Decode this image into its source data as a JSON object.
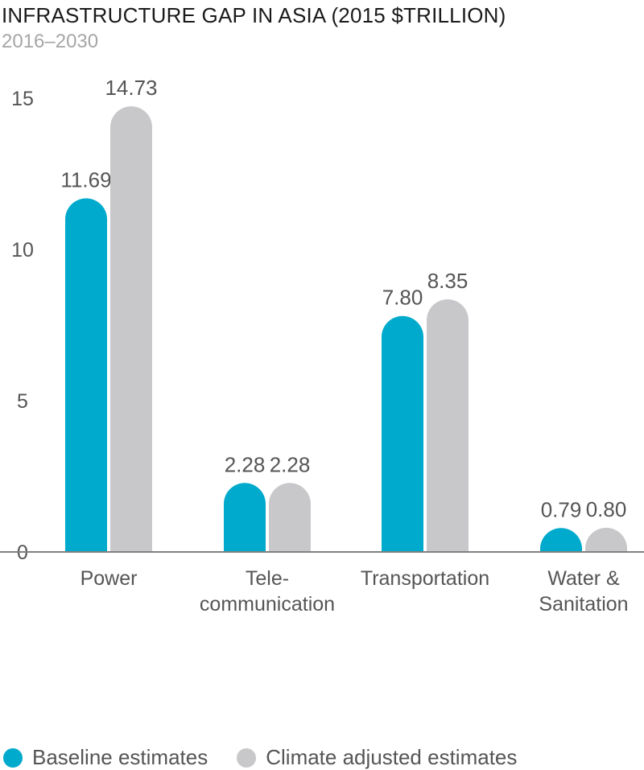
{
  "chart_data": {
    "type": "bar",
    "title": "INFRASTRUCTURE GAP IN ASIA (2015 $TRILLION)",
    "subtitle": "2016–2030",
    "categories": [
      [
        "Power"
      ],
      [
        "Tele-",
        "communication"
      ],
      [
        "Transportation"
      ],
      [
        "Water &",
        "Sanitation"
      ]
    ],
    "series": [
      {
        "name": "Baseline estimates",
        "color": "#00aacc",
        "values": [
          11.69,
          2.28,
          7.8,
          0.79
        ],
        "labels": [
          "11.69",
          "2.28",
          "7.80",
          "0.79"
        ]
      },
      {
        "name": "Climate adjusted estimates",
        "color": "#c8c8ca",
        "values": [
          14.73,
          2.28,
          8.35,
          0.8
        ],
        "labels": [
          "14.73",
          "2.28",
          "8.35",
          "0.80"
        ]
      }
    ],
    "y_ticks": [
      "0",
      "5",
      "10",
      "15"
    ],
    "ylim": [
      0,
      15
    ],
    "grid": false,
    "legend": "bottom-left",
    "axis_color": "#808080",
    "label_color": "#555555"
  }
}
